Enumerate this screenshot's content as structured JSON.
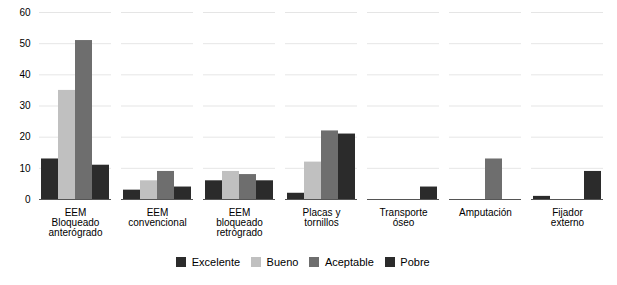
{
  "chart_data": {
    "type": "bar",
    "categories": [
      "EEM\nBloqueado\nanterógrado",
      "EEM\nconvencional",
      "EEM\nbloqueado\nretrógrado",
      "Placas y\ntornillos",
      "Transporte\nóseo",
      "Amputación",
      "Fijador\nexterno"
    ],
    "series": [
      {
        "name": "Excelente",
        "color": "#2b2b2b",
        "values": [
          13,
          3,
          6,
          2,
          0,
          0,
          1
        ]
      },
      {
        "name": "Bueno",
        "color": "#c0c0c0",
        "values": [
          35,
          6,
          9,
          12,
          0,
          0,
          0
        ]
      },
      {
        "name": "Aceptable",
        "color": "#6e6e6e",
        "values": [
          51,
          9,
          8,
          22,
          0,
          13,
          0
        ]
      },
      {
        "name": "Pobre",
        "color": "#2b2b2b",
        "values": [
          11,
          4,
          6,
          21,
          4,
          0,
          9
        ]
      }
    ],
    "ylim": [
      0,
      60
    ],
    "yticks": [
      0,
      10,
      20,
      30,
      40,
      50,
      60
    ],
    "grid": true,
    "legend": "bottom"
  }
}
